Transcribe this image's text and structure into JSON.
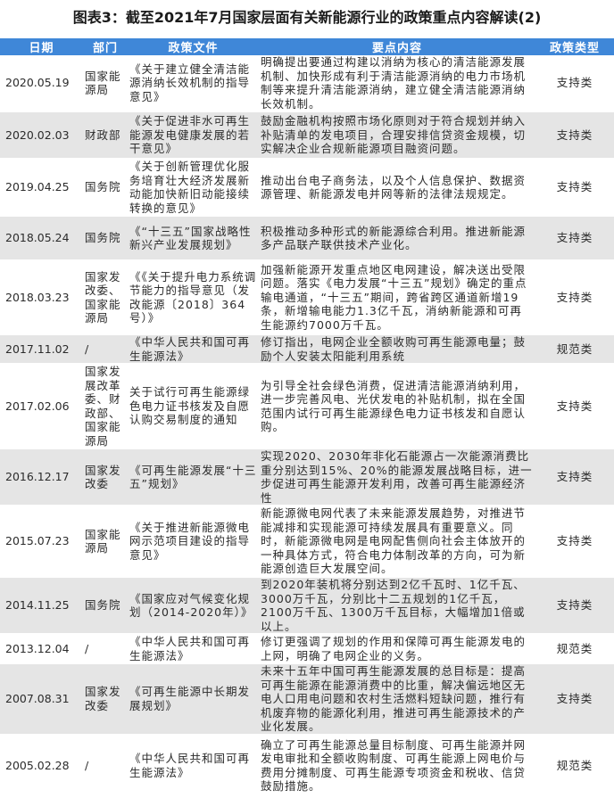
{
  "title": "图表3：截至2021年7月国家层面有关新能源行业的政策重点内容解读(2)",
  "header_color": "#3f87d8",
  "columns": [
    "日期",
    "部门",
    "政策文件",
    "要点内容",
    "政策类型"
  ],
  "rows": [
    {
      "date": "2020.05.19",
      "dept": "国家能源局",
      "doc": "《关于建立健全清洁能源消纳长效机制的指导意见》",
      "content": "明确提出要通过构建以消纳为核心的清洁能源发展机制、加快形成有利于清洁能源消纳的电力市场机制等来提升清洁能源消纳，建立健全清洁能源消纳长效机制。",
      "type": "支持类"
    },
    {
      "date": "2020.02.03",
      "dept": "财政部",
      "doc": "《关于促进非水可再生能源发电健康发展的若干意见》",
      "content": "鼓励金融机构按照市场化原则对于符合规划并纳入补贴清单的发电项目，合理安排信贷资金规模，切实解决企业合规新能源项目融资问题。",
      "type": "支持类"
    },
    {
      "date": "2019.04.25",
      "dept": "国务院",
      "doc": "《关于创新管理优化服务培育壮大经济发展新动能加快新旧动能接续转换的意见》",
      "content": "推动出台电子商务法，以及个人信息保护、数据资源管理、新能源发电并网等新的法律法规规定。",
      "type": "支持类"
    },
    {
      "date": "2018.05.24",
      "dept": "国务院",
      "doc": "《“十三五”国家战略性新兴产业发展规划》",
      "content": "积极推动多种形式的新能源综合利用。推进新能源多产品联产联供技术产业化。",
      "type": "支持类"
    },
    {
      "date": "2018.03.23",
      "dept": "国家发改委、国家能源局",
      "doc": "《《关于提升电力系统调节能力的指导意见（发改能源〔2018〕364号）》",
      "content": "加强新能源开发重点地区电网建设，解决送出受限问题。落实《电力发展“十三五”规划》确定的重点输电通道，“十三五”期间，跨省跨区通道新增19条，新增输电能力1.3亿千瓦，消纳新能源和可再生能源约7000万千瓦。",
      "type": "支持类"
    },
    {
      "date": "2017.11.02",
      "dept": "/",
      "doc": "《中华人民共和国可再生能源法》",
      "content": "修订指出，电网企业全额收购可再生能源电量；鼓励个人安装太阳能利用系统",
      "type": "规范类"
    },
    {
      "date": "2017.02.06",
      "dept": "国家发展改革委、财政部、国家能源局",
      "doc": "关于试行可再生能源绿色电力证书核发及自愿认购交易制度的通知",
      "content": "为引导全社会绿色消费，促进清洁能源消纳利用，进一步完善风电、光伏发电的补贴机制，拟在全国范围内试行可再生能源绿色电力证书核发和自愿认购。",
      "type": "支持类"
    },
    {
      "date": "2016.12.17",
      "dept": "国家发改委",
      "doc": "《可再生能源发展“十三五”规划》",
      "content": "实现2020、2030年非化石能源占一次能源消费比重分别达到15%、20%的能源发展战略目标，进一步促进可再生能源开发利用，改善可再生能源经济性",
      "type": "支持类"
    },
    {
      "date": "2015.07.23",
      "dept": "国家能源局",
      "doc": "《关于推进新能源微电网示范项目建设的指导意见》",
      "content": "新能源微电网代表了未来能源发展趋势，对推进节能减排和实现能源可持续发展具有重要意义。同时，新能源微电网是电网配售侧向社会主体放开的一种具体方式，符合电力体制改革的方向，可为新能源创造巨大发展空间。",
      "type": "支持类"
    },
    {
      "date": "2014.11.25",
      "dept": "国务院",
      "doc": "《国家应对气候变化规划（2014-2020年）》",
      "content": "到2020年装机将分别达到2亿千瓦时、1亿千瓦、3000万千瓦，分别比十二五规划的1亿千瓦，2100万千瓦、1300万千瓦目标，大幅增加1倍或以上。",
      "type": "支持类"
    },
    {
      "date": "2013.12.04",
      "dept": "/",
      "doc": "《中华人民共和国可再生能源法》",
      "content": "修订更强调了规划的作用和保障可再生能源发电的上网，明确了电网企业的义务。",
      "type": "规范类"
    },
    {
      "date": "2007.08.31",
      "dept": "国家发改委",
      "doc": "《可再生能源中长期发展规划》",
      "content": "未来十五年中国可再生能源发展的总目标是：提高可再生能源在能源消费中的比重，解决偏远地区无电人口用电问题和农村生活燃料短缺问题，推行有机废弃物的能源化利用，推进可再生能源技术的产业化发展。",
      "type": "支持类"
    },
    {
      "date": "2005.02.28",
      "dept": "/",
      "doc": "《中华人民共和国可再生能源法》",
      "content": "确立了可再生能源总量目标制度、可再生能源并网发电审批和全额收购制度、可再生能源上网电价与费用分摊制度、可再生能源专项资金和税收、信贷鼓励措施。",
      "type": "规范类"
    }
  ]
}
